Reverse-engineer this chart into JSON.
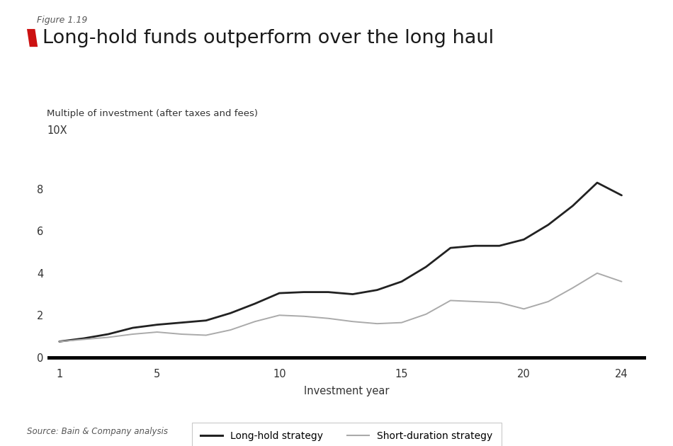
{
  "figure_label": "Figure 1.19",
  "title": "Long-hold funds outperform over the long haul",
  "ylabel": "Multiple of investment (after taxes and fees)",
  "xlabel": "Investment year",
  "ytick_top_label": "10X",
  "source": "Source: Bain & Company analysis",
  "ylim": [
    -0.4,
    10.2
  ],
  "xlim": [
    0.5,
    25.0
  ],
  "xticks": [
    1,
    5,
    10,
    15,
    20,
    24
  ],
  "yticks": [
    0,
    2,
    4,
    6,
    8
  ],
  "long_hold_x": [
    1,
    2,
    3,
    4,
    5,
    6,
    7,
    8,
    9,
    10,
    11,
    12,
    13,
    14,
    15,
    16,
    17,
    18,
    19,
    20,
    21,
    22,
    23,
    24
  ],
  "long_hold_y": [
    0.75,
    0.9,
    1.1,
    1.4,
    1.55,
    1.65,
    1.75,
    2.1,
    2.55,
    3.05,
    3.1,
    3.1,
    3.0,
    3.2,
    3.6,
    4.3,
    5.2,
    5.3,
    5.3,
    5.6,
    6.3,
    7.2,
    8.3,
    7.7
  ],
  "short_dur_x": [
    1,
    2,
    3,
    4,
    5,
    6,
    7,
    8,
    9,
    10,
    11,
    12,
    13,
    14,
    15,
    16,
    17,
    18,
    19,
    20,
    21,
    22,
    23,
    24
  ],
  "short_dur_y": [
    0.75,
    0.85,
    0.95,
    1.1,
    1.2,
    1.1,
    1.05,
    1.3,
    1.7,
    2.0,
    1.95,
    1.85,
    1.7,
    1.6,
    1.65,
    2.05,
    2.7,
    2.65,
    2.6,
    2.3,
    2.65,
    3.3,
    4.0,
    3.6
  ],
  "long_hold_color": "#222222",
  "short_dur_color": "#aaaaaa",
  "long_hold_label": "Long-hold strategy",
  "short_dur_label": "Short-duration strategy",
  "long_hold_lw": 2.0,
  "short_dur_lw": 1.4,
  "background_color": "#ffffff",
  "title_color": "#1a1a1a",
  "red_color": "#cc1111",
  "gray_text": "#555555",
  "dark_text": "#333333"
}
